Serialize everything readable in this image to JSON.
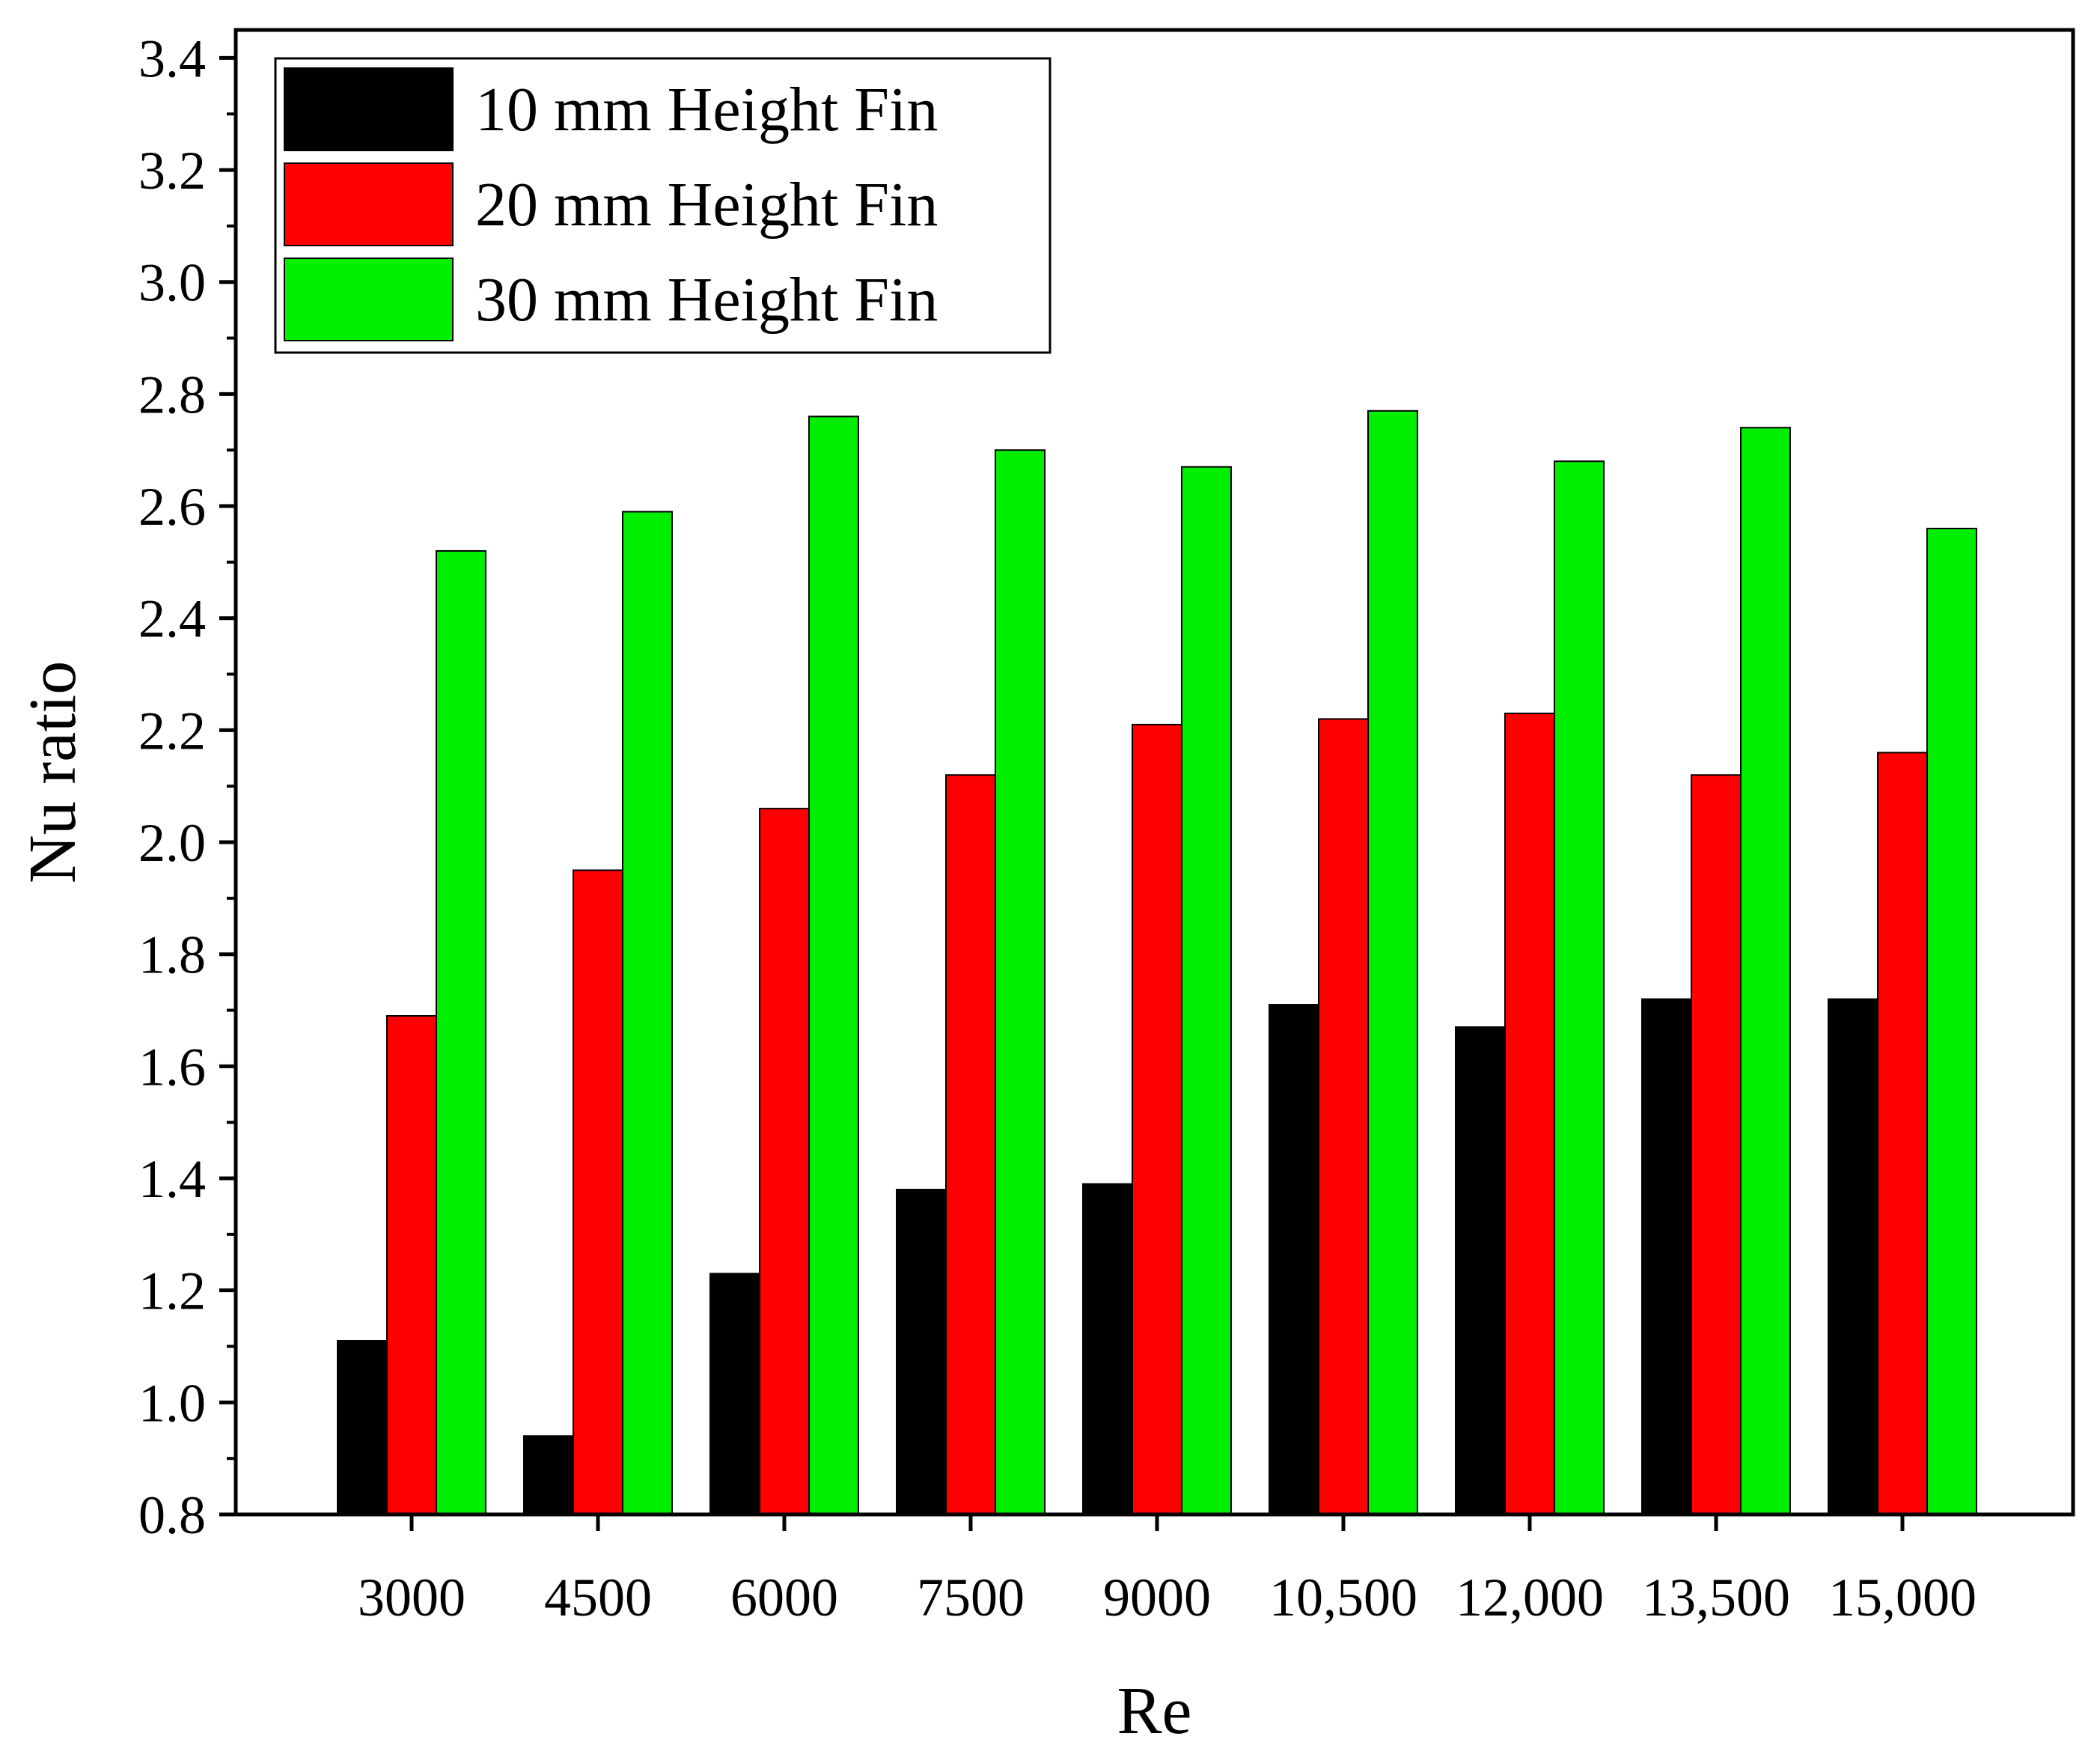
{
  "chart_data": {
    "type": "bar",
    "xlabel": "Re",
    "ylabel": "Nu ratio",
    "categories": [
      "3000",
      "4500",
      "6000",
      "7500",
      "9000",
      "10,500",
      "12,000",
      "13,500",
      "15,000"
    ],
    "ylim": [
      0.8,
      3.45
    ],
    "yticks": [
      "0.8",
      "1.0",
      "1.2",
      "1.4",
      "1.6",
      "1.8",
      "2.0",
      "2.2",
      "2.4",
      "2.6",
      "2.8",
      "3.0",
      "3.2",
      "3.4"
    ],
    "grid": false,
    "legend_position": "top-left",
    "series": [
      {
        "name": "10 mm Height Fin",
        "color": "#000000",
        "values": [
          1.11,
          0.94,
          1.23,
          1.38,
          1.39,
          1.71,
          1.67,
          1.72,
          1.72
        ]
      },
      {
        "name": "20 mm Height Fin",
        "color": "#ff0000",
        "values": [
          1.69,
          1.95,
          2.06,
          2.12,
          2.21,
          2.22,
          2.23,
          2.12,
          2.16
        ]
      },
      {
        "name": "30 mm Height Fin",
        "color": "#00ee00",
        "values": [
          2.52,
          2.59,
          2.76,
          2.7,
          2.67,
          2.77,
          2.68,
          2.74,
          2.56
        ]
      }
    ]
  }
}
